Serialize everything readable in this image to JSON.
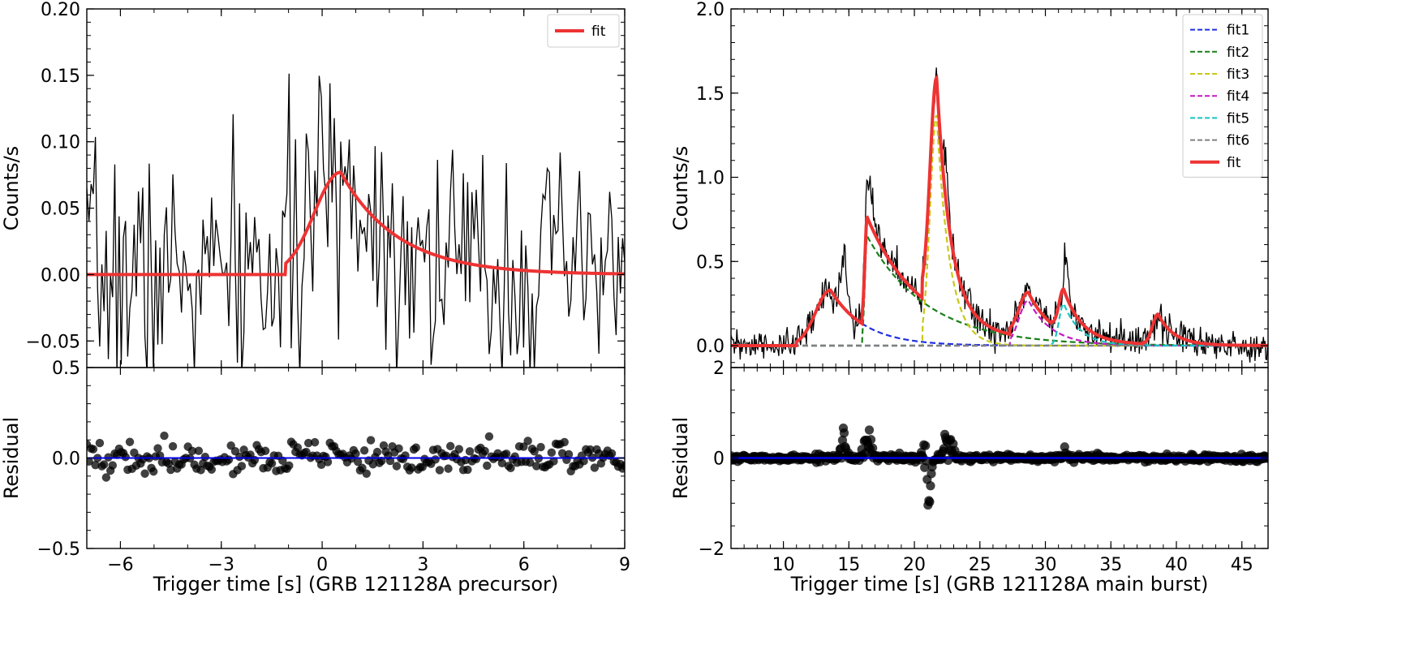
{
  "chart_data": [
    {
      "panel": "left-top",
      "type": "line",
      "title": "",
      "xlabel": "",
      "ylabel": "Counts/s",
      "xlim": [
        -7,
        9
      ],
      "ylim": [
        -0.07,
        0.2
      ],
      "yticks": [
        -0.05,
        0.0,
        0.05,
        0.1,
        0.15,
        0.2
      ],
      "ytick_labels": [
        "−0.05",
        "0.00",
        "0.05",
        "0.10",
        "0.15",
        "0.20"
      ],
      "extra_ytick_label": "0.5",
      "legend": {
        "position": "top-right",
        "entries": [
          {
            "label": "fit",
            "color": "#ee3333",
            "style": "solid"
          }
        ]
      },
      "series": [
        {
          "name": "data",
          "kind": "noisy",
          "color": "#000000",
          "x_range": [
            -7,
            9
          ],
          "step": 0.064,
          "seed": 7,
          "model": {
            "type": "frs",
            "start": -1.1,
            "peak": 0.55,
            "amp": 0.077,
            "rise": 1.1,
            "decay": 1.7,
            "baseline": 0.0
          },
          "noise": 0.045,
          "clip": [
            -0.075,
            0.205
          ]
        },
        {
          "name": "fit",
          "kind": "model",
          "color": "#ee3333",
          "x_range": [
            -7,
            9
          ],
          "model": {
            "type": "frs",
            "start": -1.1,
            "peak": 0.55,
            "amp": 0.077,
            "rise": 1.1,
            "decay": 1.7,
            "baseline": 0.0
          }
        }
      ]
    },
    {
      "panel": "left-bottom",
      "type": "scatter",
      "xlabel": "Trigger time [s] (GRB 121128A precursor)",
      "ylabel": "Residual",
      "xlim": [
        -7,
        9
      ],
      "ylim": [
        -0.5,
        0.5
      ],
      "xticks": [
        -6,
        -3,
        0,
        3,
        6,
        9
      ],
      "xtick_labels": [
        "−6",
        "−3",
        "0",
        "3",
        "6",
        "9"
      ],
      "yticks": [
        -0.5,
        0.0,
        0.5
      ],
      "ytick_labels": [
        "−0.5",
        "0.0",
        "0.5"
      ],
      "show_top_ytick_label": false,
      "zero_line_color": "#0000ee",
      "residuals": {
        "x_range": [
          -7,
          9
        ],
        "step": 0.064,
        "seed": 19,
        "spread": 0.045,
        "clip": [
          -0.17,
          0.14
        ],
        "spikes": []
      }
    },
    {
      "panel": "right-top",
      "type": "line",
      "title": "",
      "xlabel": "",
      "ylabel": "Counts/s",
      "xlim": [
        6,
        47
      ],
      "ylim": [
        -0.13,
        2.0
      ],
      "yticks": [
        0.0,
        0.5,
        1.0,
        1.5,
        2.0
      ],
      "ytick_labels": [
        "0.0",
        "0.5",
        "1.0",
        "1.5",
        "2.0"
      ],
      "legend": {
        "position": "top-right",
        "entries": [
          {
            "label": "fit1",
            "color": "#1f2fe0",
            "style": "dashed"
          },
          {
            "label": "fit2",
            "color": "#1a7f1a",
            "style": "dashed"
          },
          {
            "label": "fit3",
            "color": "#c8c81a",
            "style": "dashed"
          },
          {
            "label": "fit4",
            "color": "#c21ac2",
            "style": "dashed"
          },
          {
            "label": "fit5",
            "color": "#1ac2c2",
            "style": "dashed"
          },
          {
            "label": "fit6",
            "color": "#808080",
            "style": "dashed"
          },
          {
            "label": "fit",
            "color": "#ee3333",
            "style": "solid"
          }
        ]
      },
      "components": [
        {
          "name": "fit1",
          "color": "#1f2fe0",
          "type": "frs",
          "start": 11.0,
          "peak": 13.6,
          "amp": 0.33,
          "rise": 1.6,
          "decay": 2.6
        },
        {
          "name": "fit2",
          "color": "#1a7f1a",
          "type": "frs",
          "start": 16.0,
          "peak": 16.4,
          "amp": 0.65,
          "rise": 0.25,
          "decay": 4.6
        },
        {
          "name": "fit3",
          "color": "#c8c81a",
          "type": "frs",
          "start": 20.6,
          "peak": 21.7,
          "amp": 1.37,
          "rise": 0.7,
          "decay": 1.0
        },
        {
          "name": "fit4",
          "color": "#c21ac2",
          "type": "frs",
          "start": 27.3,
          "peak": 28.7,
          "amp": 0.27,
          "rise": 1.0,
          "decay": 1.8
        },
        {
          "name": "fit5",
          "color": "#1ac2c2",
          "type": "frs",
          "start": 30.4,
          "peak": 31.4,
          "amp": 0.25,
          "rise": 0.5,
          "decay": 1.3
        },
        {
          "name": "fit6",
          "color": "#808080",
          "type": "frs",
          "start": 37.4,
          "peak": 38.6,
          "amp": 0.18,
          "rise": 0.6,
          "decay": 1.2
        }
      ],
      "data_series": {
        "name": "data",
        "color": "#000000",
        "x_range": [
          6,
          47
        ],
        "step": 0.064,
        "seed": 31,
        "noise": 0.045,
        "clip": [
          -0.12,
          1.95
        ],
        "extra_peaks": [
          [
            14.6,
            0.3,
            0.35
          ],
          [
            16.5,
            0.4,
            0.25
          ],
          [
            22.4,
            0.25,
            0.25
          ],
          [
            31.6,
            0.2,
            0.25
          ]
        ]
      },
      "fit_series": {
        "name": "fit",
        "color": "#ee3333"
      }
    },
    {
      "panel": "right-bottom",
      "type": "scatter",
      "xlabel": "Trigger time [s] (GRB 121128A main burst)",
      "ylabel": "Residual",
      "xlim": [
        6,
        47
      ],
      "ylim": [
        -2,
        2
      ],
      "xticks": [
        10,
        15,
        20,
        25,
        30,
        35,
        40,
        45
      ],
      "xtick_labels": [
        "10",
        "15",
        "20",
        "25",
        "30",
        "35",
        "40",
        "45"
      ],
      "yticks": [
        -2,
        0,
        2
      ],
      "ytick_labels": [
        "−2",
        "0",
        "2"
      ],
      "show_top_ytick_label": true,
      "zero_line_color": "#0000ee",
      "residuals": {
        "x_range": [
          6,
          47
        ],
        "step": 0.064,
        "seed": 53,
        "spread": 0.035,
        "clip": [
          -1.3,
          0.7
        ],
        "spikes": [
          [
            14.6,
            0.25,
            0.4,
            0.2
          ],
          [
            16.4,
            0.35,
            0.55,
            0.25
          ],
          [
            20.9,
            0.25,
            0.45,
            0.2
          ],
          [
            21.1,
            0.2,
            -1.2,
            0.25
          ],
          [
            22.6,
            0.35,
            0.5,
            0.2
          ],
          [
            31.5,
            0.2,
            0.15,
            0.1
          ]
        ]
      }
    }
  ]
}
